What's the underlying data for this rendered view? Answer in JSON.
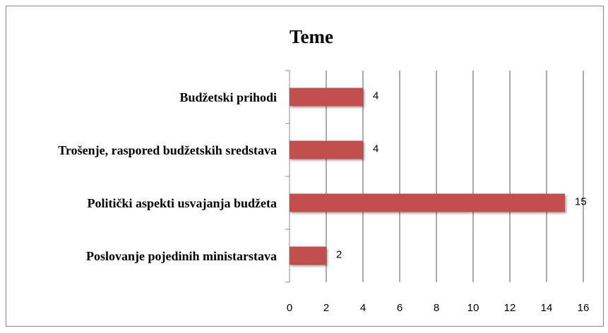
{
  "chart_data": {
    "type": "barh",
    "title": "Teme",
    "categories": [
      "Budžetski prihodi",
      "Trošenje, raspored budžetskih sredstava",
      "Politički aspekti usvajanja budžeta",
      "Poslovanje pojedinih ministarstava"
    ],
    "values": [
      4,
      4,
      15,
      2
    ],
    "color": "#c0504d",
    "xlim": [
      0,
      16
    ],
    "xticks": [
      0,
      2,
      4,
      6,
      8,
      10,
      12,
      14,
      16
    ],
    "grid": true
  }
}
